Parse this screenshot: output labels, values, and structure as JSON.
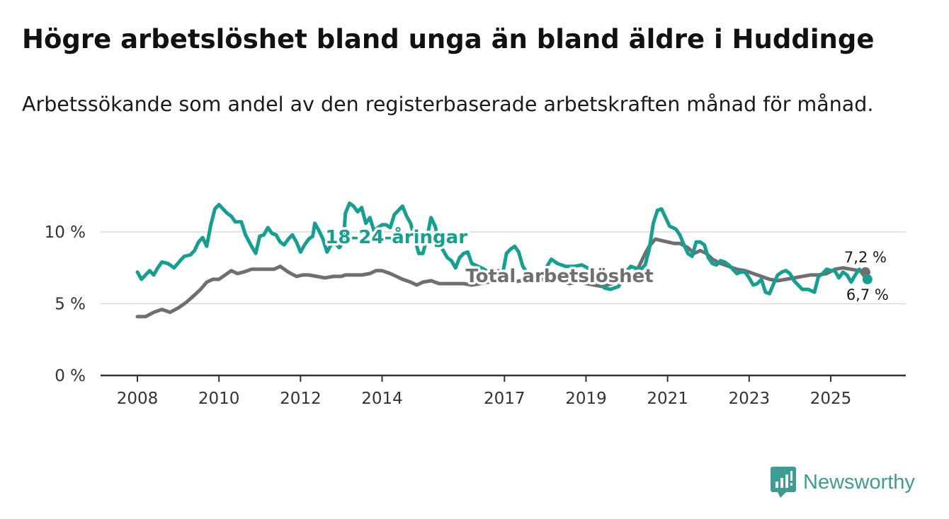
{
  "title": "Högre arbetslöshet bland unga än bland äldre i Huddinge",
  "subtitle": "Arbetssökande som andel av den registerbaserade arbetskraften månad för månad.",
  "brand": {
    "name": "Newsworthy",
    "icon": "newsworthy-logo-icon",
    "color": "#3d9c93"
  },
  "chart_data": {
    "type": "line",
    "title": "Högre arbetslöshet bland unga än bland äldre i Huddinge",
    "subtitle": "Arbetssökande som andel av den registerbaserade arbetskraften månad för månad.",
    "xlabel": "",
    "ylabel": "",
    "xlim": [
      2007.9,
      2026.9
    ],
    "ylim": [
      0,
      12
    ],
    "grid": true,
    "y_ticks": [
      {
        "value": 0,
        "label": "0 %"
      },
      {
        "value": 5,
        "label": "5 %"
      },
      {
        "value": 10,
        "label": "10 %"
      }
    ],
    "x_ticks": [
      {
        "value": 2008,
        "label": "2008"
      },
      {
        "value": 2010,
        "label": "2010"
      },
      {
        "value": 2012,
        "label": "2012"
      },
      {
        "value": 2014,
        "label": "2014"
      },
      {
        "value": 2017,
        "label": "2017"
      },
      {
        "value": 2019,
        "label": "2019"
      },
      {
        "value": 2021,
        "label": "2021"
      },
      {
        "value": 2023,
        "label": "2023"
      },
      {
        "value": 2025,
        "label": "2025"
      }
    ],
    "series": [
      {
        "name": "Total arbetslöshet",
        "label": "Total arbetslöshet",
        "color": "#716e72",
        "end_label": "7,2 %",
        "points": [
          [
            2008.0,
            4.1
          ],
          [
            2008.2,
            4.1
          ],
          [
            2008.4,
            4.4
          ],
          [
            2008.6,
            4.6
          ],
          [
            2008.7,
            4.5
          ],
          [
            2008.8,
            4.4
          ],
          [
            2009.0,
            4.7
          ],
          [
            2009.2,
            5.1
          ],
          [
            2009.4,
            5.6
          ],
          [
            2009.55,
            6.0
          ],
          [
            2009.7,
            6.5
          ],
          [
            2009.85,
            6.7
          ],
          [
            2010.0,
            6.7
          ],
          [
            2010.2,
            7.1
          ],
          [
            2010.3,
            7.3
          ],
          [
            2010.45,
            7.1
          ],
          [
            2010.6,
            7.2
          ],
          [
            2010.8,
            7.4
          ],
          [
            2011.0,
            7.4
          ],
          [
            2011.2,
            7.4
          ],
          [
            2011.35,
            7.4
          ],
          [
            2011.5,
            7.6
          ],
          [
            2011.7,
            7.2
          ],
          [
            2011.9,
            6.9
          ],
          [
            2012.05,
            7.0
          ],
          [
            2012.2,
            7.0
          ],
          [
            2012.4,
            6.9
          ],
          [
            2012.6,
            6.8
          ],
          [
            2012.8,
            6.9
          ],
          [
            2013.0,
            6.9
          ],
          [
            2013.1,
            7.0
          ],
          [
            2013.3,
            7.0
          ],
          [
            2013.5,
            7.0
          ],
          [
            2013.7,
            7.1
          ],
          [
            2013.85,
            7.3
          ],
          [
            2014.0,
            7.3
          ],
          [
            2014.2,
            7.1
          ],
          [
            2014.35,
            6.9
          ],
          [
            2014.5,
            6.7
          ],
          [
            2014.7,
            6.5
          ],
          [
            2014.85,
            6.3
          ],
          [
            2015.0,
            6.5
          ],
          [
            2015.2,
            6.6
          ],
          [
            2015.4,
            6.4
          ],
          [
            2015.6,
            6.4
          ],
          [
            2015.8,
            6.4
          ],
          [
            2016.0,
            6.4
          ],
          [
            2016.2,
            6.3
          ],
          [
            2016.4,
            6.4
          ],
          [
            2016.6,
            6.5
          ],
          [
            2016.8,
            6.6
          ],
          [
            2017.0,
            6.6
          ],
          [
            2017.2,
            6.5
          ],
          [
            2017.4,
            6.6
          ],
          [
            2017.5,
            6.8
          ],
          [
            2018.3,
            6.6
          ],
          [
            2018.6,
            6.4
          ],
          [
            2018.8,
            6.5
          ],
          [
            2019.0,
            6.4
          ],
          [
            2019.2,
            6.3
          ],
          [
            2019.4,
            6.2
          ],
          [
            2020.1,
            6.8
          ],
          [
            2020.3,
            7.6
          ],
          [
            2020.45,
            8.5
          ],
          [
            2020.55,
            9.0
          ],
          [
            2020.7,
            9.5
          ],
          [
            2020.85,
            9.4
          ],
          [
            2021.0,
            9.3
          ],
          [
            2021.15,
            9.2
          ],
          [
            2021.3,
            9.2
          ],
          [
            2021.5,
            8.9
          ],
          [
            2021.65,
            8.5
          ],
          [
            2021.8,
            8.7
          ],
          [
            2021.95,
            8.5
          ],
          [
            2022.1,
            8.1
          ],
          [
            2022.3,
            7.8
          ],
          [
            2022.5,
            7.6
          ],
          [
            2022.7,
            7.4
          ],
          [
            2022.9,
            7.3
          ],
          [
            2023.1,
            7.1
          ],
          [
            2023.3,
            6.9
          ],
          [
            2023.5,
            6.7
          ],
          [
            2023.7,
            6.6
          ],
          [
            2023.9,
            6.7
          ],
          [
            2024.1,
            6.8
          ],
          [
            2024.3,
            6.9
          ],
          [
            2024.5,
            7.0
          ],
          [
            2024.7,
            7.0
          ],
          [
            2024.9,
            7.1
          ],
          [
            2025.1,
            7.4
          ],
          [
            2025.3,
            7.5
          ],
          [
            2025.5,
            7.4
          ],
          [
            2025.7,
            7.3
          ],
          [
            2025.85,
            7.2
          ]
        ]
      },
      {
        "name": "18-24-åringar",
        "label": "18-24-åringar",
        "color": "#14a091",
        "end_label": "6,7 %",
        "points": [
          [
            2008.0,
            7.2
          ],
          [
            2008.1,
            6.7
          ],
          [
            2008.2,
            7.0
          ],
          [
            2008.3,
            7.3
          ],
          [
            2008.4,
            7.0
          ],
          [
            2008.5,
            7.5
          ],
          [
            2008.6,
            7.9
          ],
          [
            2008.75,
            7.8
          ],
          [
            2008.9,
            7.5
          ],
          [
            2009.05,
            8.0
          ],
          [
            2009.15,
            8.3
          ],
          [
            2009.3,
            8.4
          ],
          [
            2009.4,
            8.7
          ],
          [
            2009.5,
            9.3
          ],
          [
            2009.6,
            9.6
          ],
          [
            2009.7,
            9.0
          ],
          [
            2009.8,
            10.5
          ],
          [
            2009.9,
            11.6
          ],
          [
            2010.0,
            11.9
          ],
          [
            2010.1,
            11.6
          ],
          [
            2010.2,
            11.3
          ],
          [
            2010.3,
            11.1
          ],
          [
            2010.4,
            10.7
          ],
          [
            2010.55,
            10.7
          ],
          [
            2010.65,
            9.8
          ],
          [
            2010.8,
            9.0
          ],
          [
            2010.9,
            8.5
          ],
          [
            2011.0,
            9.7
          ],
          [
            2011.1,
            9.8
          ],
          [
            2011.2,
            10.3
          ],
          [
            2011.3,
            9.9
          ],
          [
            2011.4,
            9.8
          ],
          [
            2011.5,
            9.3
          ],
          [
            2011.6,
            9.1
          ],
          [
            2011.7,
            9.5
          ],
          [
            2011.8,
            9.8
          ],
          [
            2011.9,
            9.3
          ],
          [
            2012.0,
            8.6
          ],
          [
            2012.1,
            9.1
          ],
          [
            2012.2,
            9.5
          ],
          [
            2012.3,
            9.7
          ],
          [
            2012.35,
            10.6
          ],
          [
            2012.45,
            10.1
          ],
          [
            2012.55,
            9.5
          ],
          [
            2012.65,
            8.6
          ],
          [
            2012.75,
            9.1
          ],
          [
            2012.85,
            9.2
          ],
          [
            2012.95,
            8.9
          ],
          [
            2013.05,
            9.3
          ],
          [
            2013.1,
            11.3
          ],
          [
            2013.2,
            12.0
          ],
          [
            2013.3,
            11.8
          ],
          [
            2013.4,
            11.4
          ],
          [
            2013.5,
            11.7
          ],
          [
            2013.6,
            10.6
          ],
          [
            2013.7,
            11.0
          ],
          [
            2013.8,
            10.1
          ],
          [
            2013.9,
            10.3
          ],
          [
            2014.0,
            10.5
          ],
          [
            2014.1,
            10.5
          ],
          [
            2014.2,
            10.3
          ],
          [
            2014.3,
            11.2
          ],
          [
            2014.4,
            11.5
          ],
          [
            2014.5,
            11.8
          ],
          [
            2014.6,
            11.1
          ],
          [
            2014.7,
            10.6
          ],
          [
            2014.8,
            9.5
          ],
          [
            2014.9,
            8.5
          ],
          [
            2015.0,
            8.5
          ],
          [
            2015.1,
            9.6
          ],
          [
            2015.2,
            11.0
          ],
          [
            2015.3,
            10.4
          ],
          [
            2015.4,
            9.2
          ],
          [
            2015.5,
            8.7
          ],
          [
            2015.6,
            8.2
          ],
          [
            2015.7,
            8.0
          ],
          [
            2015.8,
            7.5
          ],
          [
            2015.9,
            8.2
          ],
          [
            2016.0,
            8.5
          ],
          [
            2016.1,
            8.6
          ],
          [
            2016.2,
            7.8
          ],
          [
            2016.35,
            7.6
          ],
          [
            2016.5,
            7.4
          ],
          [
            2016.65,
            7.1
          ],
          [
            2016.75,
            6.8
          ],
          [
            2016.85,
            7.3
          ],
          [
            2016.95,
            7.0
          ],
          [
            2017.05,
            8.5
          ],
          [
            2017.15,
            8.8
          ],
          [
            2017.25,
            9.0
          ],
          [
            2017.35,
            8.6
          ],
          [
            2017.45,
            7.6
          ],
          [
            2017.55,
            7.2
          ],
          [
            2017.65,
            6.6
          ],
          [
            2017.75,
            6.5
          ],
          [
            2017.85,
            6.9
          ],
          [
            2018.0,
            7.4
          ],
          [
            2018.15,
            8.1
          ],
          [
            2018.3,
            7.8
          ],
          [
            2018.5,
            7.6
          ],
          [
            2018.7,
            7.6
          ],
          [
            2018.9,
            7.7
          ],
          [
            2019.1,
            7.4
          ],
          [
            2019.3,
            6.6
          ],
          [
            2019.45,
            6.1
          ],
          [
            2019.6,
            6.0
          ],
          [
            2019.8,
            6.2
          ],
          [
            2020.0,
            7.3
          ],
          [
            2020.1,
            7.6
          ],
          [
            2020.2,
            7.5
          ],
          [
            2020.35,
            7.4
          ],
          [
            2020.45,
            7.7
          ],
          [
            2020.55,
            8.8
          ],
          [
            2020.65,
            10.6
          ],
          [
            2020.75,
            11.5
          ],
          [
            2020.85,
            11.6
          ],
          [
            2020.95,
            11.0
          ],
          [
            2021.05,
            10.4
          ],
          [
            2021.2,
            10.2
          ],
          [
            2021.3,
            9.8
          ],
          [
            2021.4,
            9.1
          ],
          [
            2021.5,
            8.5
          ],
          [
            2021.6,
            8.3
          ],
          [
            2021.7,
            9.3
          ],
          [
            2021.8,
            9.3
          ],
          [
            2021.9,
            9.1
          ],
          [
            2022.0,
            8.2
          ],
          [
            2022.1,
            7.8
          ],
          [
            2022.2,
            7.7
          ],
          [
            2022.3,
            8.0
          ],
          [
            2022.4,
            7.9
          ],
          [
            2022.5,
            7.7
          ],
          [
            2022.6,
            7.4
          ],
          [
            2022.7,
            7.1
          ],
          [
            2022.8,
            7.2
          ],
          [
            2022.9,
            7.2
          ],
          [
            2023.0,
            6.8
          ],
          [
            2023.1,
            6.3
          ],
          [
            2023.2,
            6.4
          ],
          [
            2023.3,
            6.7
          ],
          [
            2023.4,
            5.8
          ],
          [
            2023.5,
            5.7
          ],
          [
            2023.6,
            6.4
          ],
          [
            2023.7,
            7.0
          ],
          [
            2023.8,
            7.2
          ],
          [
            2023.9,
            7.3
          ],
          [
            2024.0,
            7.1
          ],
          [
            2024.1,
            6.6
          ],
          [
            2024.2,
            6.3
          ],
          [
            2024.3,
            6.0
          ],
          [
            2024.45,
            6.0
          ],
          [
            2024.6,
            5.8
          ],
          [
            2024.7,
            6.9
          ],
          [
            2024.8,
            7.1
          ],
          [
            2024.9,
            7.4
          ],
          [
            2025.0,
            7.3
          ],
          [
            2025.1,
            7.3
          ],
          [
            2025.2,
            6.8
          ],
          [
            2025.3,
            7.2
          ],
          [
            2025.4,
            7.0
          ],
          [
            2025.5,
            6.5
          ],
          [
            2025.6,
            7.0
          ],
          [
            2025.7,
            7.4
          ],
          [
            2025.8,
            7.0
          ],
          [
            2025.9,
            6.7
          ]
        ]
      }
    ],
    "legend": "inline-labels"
  }
}
